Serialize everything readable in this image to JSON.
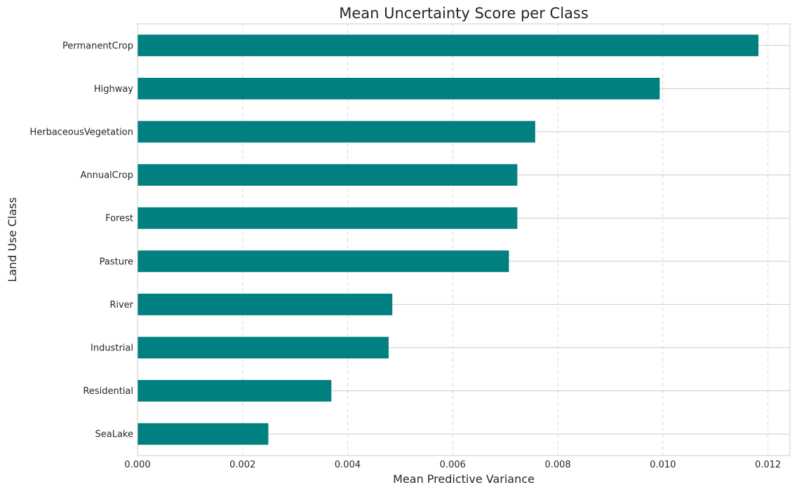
{
  "chart_data": {
    "type": "bar",
    "orientation": "horizontal",
    "title": "Mean Uncertainty Score per Class",
    "xlabel": "Mean Predictive Variance",
    "ylabel": "Land Use Class",
    "categories": [
      "PermanentCrop",
      "Highway",
      "HerbaceousVegetation",
      "AnnualCrop",
      "Forest",
      "Pasture",
      "River",
      "Industrial",
      "Residential",
      "SeaLake"
    ],
    "values": [
      0.01182,
      0.00994,
      0.00757,
      0.00723,
      0.00723,
      0.00707,
      0.00485,
      0.00478,
      0.00369,
      0.00249
    ],
    "xlim": [
      0,
      0.01242
    ],
    "xticks": [
      "0.000",
      "0.002",
      "0.004",
      "0.006",
      "0.008",
      "0.010",
      "0.012"
    ],
    "xtick_values": [
      0,
      0.002,
      0.004,
      0.006,
      0.008,
      0.01,
      0.012
    ],
    "bar_color": "#008080",
    "grid": "x-dashed, y-solid"
  }
}
